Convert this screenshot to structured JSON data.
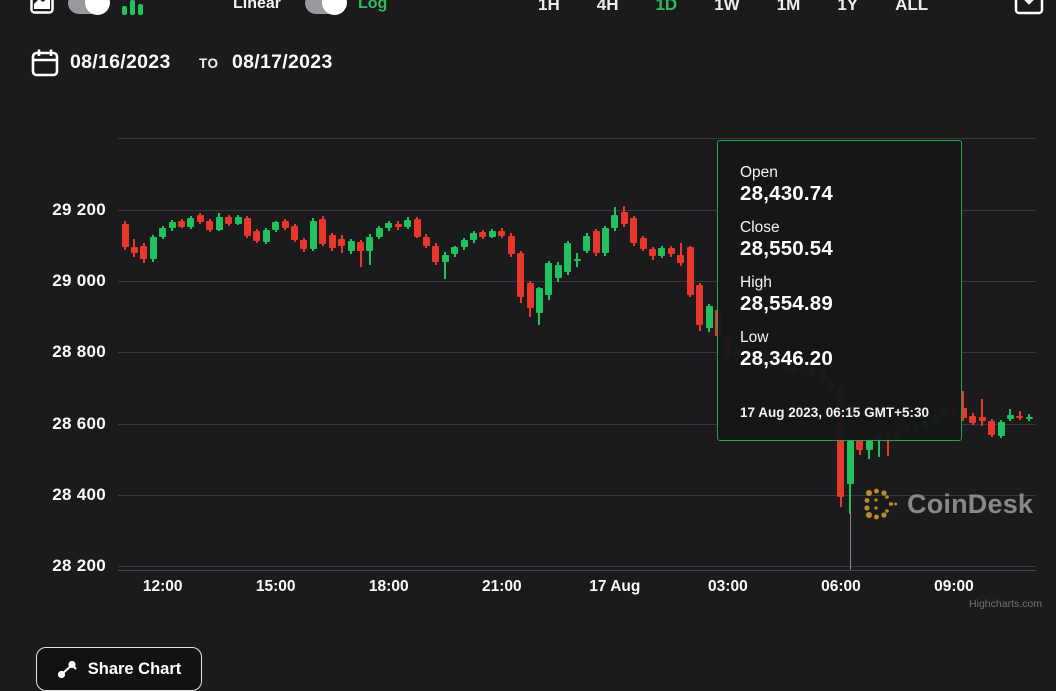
{
  "toolbar": {
    "chart_type_toggle": {
      "left_icon": "area-chart-icon",
      "right_icon": "bar-chart-icon",
      "state": "right"
    },
    "scale_toggle": {
      "left_label": "Linear",
      "right_label": "Log",
      "state": "right"
    },
    "ranges": [
      {
        "label": "1H",
        "active": false
      },
      {
        "label": "4H",
        "active": false
      },
      {
        "label": "1D",
        "active": true
      },
      {
        "label": "1W",
        "active": false
      },
      {
        "label": "1M",
        "active": false
      },
      {
        "label": "1Y",
        "active": false
      },
      {
        "label": "ALL",
        "active": false
      }
    ],
    "download_icon": "download-tray-icon"
  },
  "date_range": {
    "start": "08/16/2023",
    "separator": "TO",
    "end": "08/17/2023"
  },
  "tooltip": {
    "rows": [
      {
        "label": "Open",
        "value": "28,430.74"
      },
      {
        "label": "Close",
        "value": "28,550.54"
      },
      {
        "label": "High",
        "value": "28,554.89"
      },
      {
        "label": "Low",
        "value": "28,346.20"
      }
    ],
    "timestamp": "17 Aug 2023, 06:15 GMT+5:30"
  },
  "watermark": {
    "text": "CoinDesk"
  },
  "credit": "Highcharts.com",
  "share_button": {
    "label": "Share Chart"
  },
  "colors": {
    "bg": "#1b1b1d",
    "grid": "#39393d",
    "up": "#21c25e",
    "down": "#e8382c",
    "accent": "#2ebd5b",
    "tooltip_border": "#2f9e4f",
    "gold": "#c9962e"
  },
  "chart_data": {
    "type": "candlestick",
    "legend": "none",
    "grid": "horizontal",
    "y_axis": {
      "range": [
        28150,
        29400
      ],
      "ticks": [
        {
          "label": "29 200",
          "value": 29200
        },
        {
          "label": "29 000",
          "value": 29000
        },
        {
          "label": "28 800",
          "value": 28800
        },
        {
          "label": "28 600",
          "value": 28600
        },
        {
          "label": "28 400",
          "value": 28400
        },
        {
          "label": "28 200",
          "value": 28200
        }
      ]
    },
    "x_axis": {
      "labels": [
        {
          "label": "12:00",
          "index": 4
        },
        {
          "label": "15:00",
          "index": 16
        },
        {
          "label": "18:00",
          "index": 28
        },
        {
          "label": "21:00",
          "index": 40
        },
        {
          "label": "17 Aug",
          "index": 52
        },
        {
          "label": "03:00",
          "index": 64
        },
        {
          "label": "06:00",
          "index": 76
        },
        {
          "label": "09:00",
          "index": 88
        }
      ]
    },
    "hover_index": 77,
    "interval": "15m",
    "columns": [
      "time",
      "open",
      "high",
      "low",
      "close"
    ],
    "candles": [
      [
        "16 Aug 11:00",
        29160,
        29168,
        29088,
        29095
      ],
      [
        "16 Aug 11:15",
        29095,
        29118,
        29068,
        29078
      ],
      [
        "16 Aug 11:30",
        29100,
        29108,
        29052,
        29062
      ],
      [
        "16 Aug 11:45",
        29062,
        29130,
        29055,
        29125
      ],
      [
        "16 Aug 12:00",
        29125,
        29155,
        29118,
        29150
      ],
      [
        "16 Aug 12:15",
        29150,
        29172,
        29142,
        29166
      ],
      [
        "16 Aug 12:30",
        29168,
        29176,
        29148,
        29152
      ],
      [
        "16 Aug 12:45",
        29152,
        29182,
        29148,
        29178
      ],
      [
        "16 Aug 13:00",
        29185,
        29192,
        29160,
        29166
      ],
      [
        "16 Aug 13:15",
        29170,
        29176,
        29138,
        29143
      ],
      [
        "16 Aug 13:30",
        29145,
        29192,
        29140,
        29180
      ],
      [
        "16 Aug 13:45",
        29180,
        29186,
        29156,
        29162
      ],
      [
        "16 Aug 14:00",
        29162,
        29186,
        29158,
        29180
      ],
      [
        "16 Aug 14:15",
        29178,
        29184,
        29122,
        29128
      ],
      [
        "16 Aug 14:30",
        29140,
        29148,
        29106,
        29112
      ],
      [
        "16 Aug 14:45",
        29110,
        29150,
        29104,
        29145
      ],
      [
        "16 Aug 15:00",
        29145,
        29170,
        29138,
        29165
      ],
      [
        "16 Aug 15:15",
        29168,
        29175,
        29144,
        29150
      ],
      [
        "16 Aug 15:30",
        29155,
        29160,
        29110,
        29116
      ],
      [
        "16 Aug 15:45",
        29115,
        29122,
        29082,
        29090
      ],
      [
        "16 Aug 16:00",
        29090,
        29178,
        29084,
        29170
      ],
      [
        "16 Aug 16:15",
        29175,
        29182,
        29098,
        29105
      ],
      [
        "16 Aug 16:30",
        29130,
        29136,
        29086,
        29092
      ],
      [
        "16 Aug 16:45",
        29118,
        29130,
        29078,
        29098
      ],
      [
        "16 Aug 17:00",
        29085,
        29118,
        29076,
        29112
      ],
      [
        "16 Aug 17:15",
        29110,
        29116,
        29040,
        29085
      ],
      [
        "16 Aug 17:30",
        29085,
        29132,
        29046,
        29125
      ],
      [
        "16 Aug 17:45",
        29125,
        29156,
        29118,
        29150
      ],
      [
        "16 Aug 18:00",
        29150,
        29170,
        29142,
        29163
      ],
      [
        "16 Aug 18:15",
        29160,
        29168,
        29144,
        29152
      ],
      [
        "16 Aug 18:30",
        29152,
        29180,
        29146,
        29172
      ],
      [
        "16 Aug 18:45",
        29175,
        29180,
        29120,
        29125
      ],
      [
        "16 Aug 19:00",
        29125,
        29132,
        29094,
        29100
      ],
      [
        "16 Aug 19:15",
        29100,
        29106,
        29046,
        29055
      ],
      [
        "16 Aug 19:30",
        29055,
        29082,
        29005,
        29075
      ],
      [
        "16 Aug 19:45",
        29075,
        29100,
        29068,
        29095
      ],
      [
        "16 Aug 20:00",
        29095,
        29120,
        29088,
        29115
      ],
      [
        "16 Aug 20:15",
        29115,
        29140,
        29108,
        29135
      ],
      [
        "16 Aug 20:30",
        29138,
        29144,
        29118,
        29125
      ],
      [
        "16 Aug 20:45",
        29125,
        29148,
        29120,
        29142
      ],
      [
        "16 Aug 21:00",
        29142,
        29150,
        29122,
        29128
      ],
      [
        "16 Aug 21:15",
        29128,
        29134,
        29068,
        29075
      ],
      [
        "16 Aug 21:30",
        29078,
        29084,
        28940,
        28955
      ],
      [
        "16 Aug 21:45",
        28995,
        29000,
        28898,
        28925
      ],
      [
        "16 Aug 22:00",
        28910,
        28985,
        28878,
        28980
      ],
      [
        "16 Aug 22:15",
        28960,
        29058,
        28948,
        29052
      ],
      [
        "16 Aug 22:30",
        29010,
        29055,
        28998,
        29045
      ],
      [
        "16 Aug 22:45",
        29025,
        29112,
        29018,
        29108
      ],
      [
        "16 Aug 23:00",
        29060,
        29080,
        29040,
        29062
      ],
      [
        "16 Aug 23:15",
        29085,
        29135,
        29078,
        29128
      ],
      [
        "16 Aug 23:30",
        29140,
        29146,
        29072,
        29078
      ],
      [
        "16 Aug 23:45",
        29080,
        29155,
        29072,
        29150
      ],
      [
        "17 Aug 00:00",
        29150,
        29208,
        29142,
        29185
      ],
      [
        "17 Aug 00:15",
        29195,
        29212,
        29152,
        29162
      ],
      [
        "17 Aug 00:30",
        29178,
        29184,
        29100,
        29108
      ],
      [
        "17 Aug 00:45",
        29120,
        29128,
        29084,
        29090
      ],
      [
        "17 Aug 01:00",
        29090,
        29096,
        29060,
        29070
      ],
      [
        "17 Aug 01:15",
        29070,
        29098,
        29064,
        29092
      ],
      [
        "17 Aug 01:30",
        29092,
        29098,
        29068,
        29075
      ],
      [
        "17 Aug 01:45",
        29075,
        29108,
        29044,
        29052
      ],
      [
        "17 Aug 02:00",
        29095,
        29100,
        28955,
        28962
      ],
      [
        "17 Aug 02:15",
        28990,
        28996,
        28860,
        28878
      ],
      [
        "17 Aug 02:30",
        28868,
        28935,
        28856,
        28930
      ],
      [
        "17 Aug 02:45",
        28920,
        28928,
        28838,
        28845
      ],
      [
        "17 Aug 03:00",
        28845,
        28852,
        28782,
        28790
      ],
      [
        "17 Aug 03:15",
        28790,
        28818,
        28780,
        28810
      ],
      [
        "17 Aug 03:30",
        28810,
        28816,
        28764,
        28772
      ],
      [
        "17 Aug 03:45",
        28772,
        28806,
        28766,
        28800
      ],
      [
        "17 Aug 04:00",
        28800,
        28806,
        28754,
        28762
      ],
      [
        "17 Aug 04:15",
        28762,
        28792,
        28756,
        28785
      ],
      [
        "17 Aug 04:30",
        28785,
        28790,
        28740,
        28748
      ],
      [
        "17 Aug 04:45",
        28748,
        28776,
        28742,
        28770
      ],
      [
        "17 Aug 05:00",
        28770,
        28775,
        28728,
        28735
      ],
      [
        "17 Aug 05:15",
        28735,
        28764,
        28730,
        28758
      ],
      [
        "17 Aug 05:30",
        28758,
        28762,
        28712,
        28720
      ],
      [
        "17 Aug 05:45",
        28720,
        28726,
        28692,
        28700
      ],
      [
        "17 Aug 06:00",
        28700,
        28705,
        28366,
        28394
      ],
      [
        "17 Aug 06:15",
        28430.74,
        28554.89,
        28346.2,
        28550.54
      ],
      [
        "17 Aug 06:30",
        28550,
        28556,
        28512,
        28526
      ],
      [
        "17 Aug 06:45",
        28526,
        28560,
        28500,
        28552
      ],
      [
        "17 Aug 07:00",
        28552,
        28572,
        28505,
        28565
      ],
      [
        "17 Aug 07:15",
        28565,
        28570,
        28510,
        28558
      ],
      [
        "17 Aug 07:30",
        28558,
        28584,
        28552,
        28578
      ],
      [
        "17 Aug 07:45",
        28578,
        28600,
        28570,
        28592
      ],
      [
        "17 Aug 08:00",
        28592,
        28604,
        28576,
        28584
      ],
      [
        "17 Aug 08:15",
        28584,
        28612,
        28580,
        28606
      ],
      [
        "17 Aug 08:30",
        28606,
        28628,
        28598,
        28622
      ],
      [
        "17 Aug 08:45",
        28622,
        28648,
        28615,
        28640
      ],
      [
        "17 Aug 09:00",
        28640,
        28652,
        28618,
        28626
      ],
      [
        "17 Aug 09:15",
        28645,
        28692,
        28608,
        28616
      ],
      [
        "17 Aug 09:30",
        28622,
        28630,
        28596,
        28602
      ],
      [
        "17 Aug 09:45",
        28618,
        28668,
        28592,
        28606
      ],
      [
        "17 Aug 10:00",
        28606,
        28612,
        28562,
        28568
      ],
      [
        "17 Aug 10:15",
        28565,
        28610,
        28560,
        28604
      ],
      [
        "17 Aug 10:30",
        28612,
        28642,
        28606,
        28624
      ],
      [
        "17 Aug 10:45",
        28620,
        28634,
        28610,
        28616
      ],
      [
        "17 Aug 11:00",
        28616,
        28626,
        28608,
        28618
      ]
    ]
  }
}
